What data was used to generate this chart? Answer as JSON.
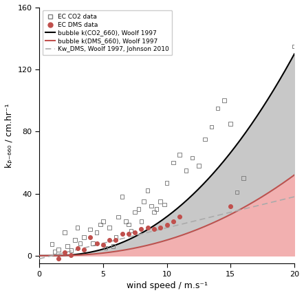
{
  "title": "",
  "xlabel": "wind speed / m.s⁻¹",
  "ylabel": "kᵦ₋₆₆₀ / cm.hr⁻¹",
  "xlim": [
    0,
    20
  ],
  "ylim": [
    -5,
    160
  ],
  "yticks": [
    0,
    40,
    80,
    120,
    160
  ],
  "xticks": [
    0,
    5,
    10,
    15,
    20
  ],
  "co2_scatter": [
    [
      1.0,
      7.5
    ],
    [
      1.2,
      2.5
    ],
    [
      1.5,
      4.0
    ],
    [
      2.0,
      15.0
    ],
    [
      2.2,
      6.0
    ],
    [
      2.5,
      3.5
    ],
    [
      2.8,
      10.0
    ],
    [
      3.0,
      18.0
    ],
    [
      3.2,
      8.0
    ],
    [
      3.5,
      12.0
    ],
    [
      4.0,
      17.0
    ],
    [
      4.2,
      8.0
    ],
    [
      4.5,
      15.0
    ],
    [
      4.8,
      20.0
    ],
    [
      5.0,
      22.0
    ],
    [
      5.2,
      5.0
    ],
    [
      5.5,
      18.0
    ],
    [
      5.8,
      6.0
    ],
    [
      6.0,
      12.0
    ],
    [
      6.2,
      25.0
    ],
    [
      6.5,
      38.0
    ],
    [
      6.8,
      22.0
    ],
    [
      7.0,
      20.0
    ],
    [
      7.2,
      16.0
    ],
    [
      7.5,
      28.0
    ],
    [
      7.8,
      30.0
    ],
    [
      8.0,
      22.0
    ],
    [
      8.2,
      35.0
    ],
    [
      8.5,
      42.0
    ],
    [
      8.8,
      32.0
    ],
    [
      9.0,
      28.0
    ],
    [
      9.2,
      30.0
    ],
    [
      9.5,
      35.0
    ],
    [
      9.8,
      33.0
    ],
    [
      10.0,
      47.0
    ],
    [
      10.5,
      60.0
    ],
    [
      11.0,
      65.0
    ],
    [
      11.5,
      55.0
    ],
    [
      12.0,
      63.0
    ],
    [
      12.5,
      58.0
    ],
    [
      13.0,
      75.0
    ],
    [
      13.5,
      83.0
    ],
    [
      14.0,
      95.0
    ],
    [
      14.5,
      100.0
    ],
    [
      15.0,
      85.0
    ],
    [
      15.5,
      41.0
    ],
    [
      16.0,
      50.0
    ],
    [
      20.0,
      135.0
    ]
  ],
  "dms_scatter": [
    [
      1.5,
      -2.0
    ],
    [
      2.0,
      2.0
    ],
    [
      2.5,
      0.5
    ],
    [
      3.0,
      5.0
    ],
    [
      3.5,
      4.0
    ],
    [
      4.0,
      12.0
    ],
    [
      4.5,
      8.0
    ],
    [
      5.0,
      7.0
    ],
    [
      5.5,
      10.0
    ],
    [
      6.0,
      10.0
    ],
    [
      6.5,
      14.0
    ],
    [
      7.0,
      14.0
    ],
    [
      7.5,
      15.0
    ],
    [
      8.0,
      17.0
    ],
    [
      8.5,
      18.0
    ],
    [
      9.0,
      17.0
    ],
    [
      9.5,
      18.0
    ],
    [
      10.0,
      20.0
    ],
    [
      10.5,
      22.0
    ],
    [
      11.0,
      25.0
    ],
    [
      15.0,
      32.0
    ]
  ],
  "co2_line_color": "#000000",
  "dms_line_color": "#c0504d",
  "dms_dashed_color": "#aaaaaa",
  "gray_fill_color": "#c8c8c8",
  "pink_fill_color": "#f2b0b0",
  "legend_labels": [
    "EC CO2 data",
    "EC DMS data",
    "bubble k(CO2_660), Woolf 1997",
    "bubble k(DMS_660), Woolf 1997",
    "Kw_DMS, Woolf 1997, Johnson 2010"
  ]
}
